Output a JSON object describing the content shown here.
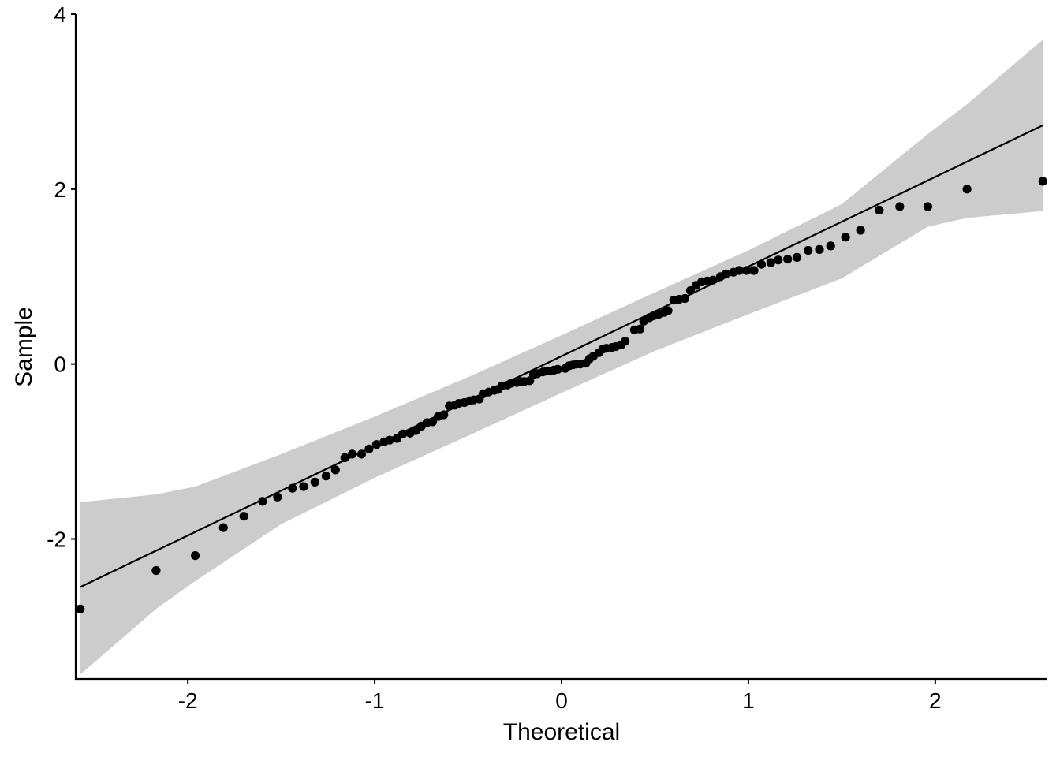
{
  "chart_data": {
    "type": "scatter",
    "subtype": "qq-plot",
    "title": "",
    "xlabel": "Theoretical",
    "ylabel": "Sample",
    "xlim": [
      -2.6,
      2.6
    ],
    "ylim": [
      -3.6,
      4.0
    ],
    "x_ticks": [
      -2,
      -1,
      0,
      1,
      2
    ],
    "x_tick_labels": [
      "-2",
      "-1",
      "0",
      "1",
      "2"
    ],
    "y_ticks": [
      -2,
      0,
      2,
      4
    ],
    "y_tick_labels": [
      "-2",
      "0",
      "2",
      "4"
    ],
    "grid": false,
    "colors": {
      "points": "#000000",
      "line": "#000000",
      "band": "#cccccc",
      "axis": "#000000"
    },
    "reference_line": {
      "x": [
        -2.576,
        2.576
      ],
      "y": [
        -2.55,
        2.73
      ]
    },
    "confidence_band": {
      "x": [
        -2.576,
        -2.17,
        -1.96,
        -1.5,
        -1.0,
        -0.5,
        0.0,
        0.5,
        1.0,
        1.5,
        1.96,
        2.17,
        2.576
      ],
      "lower": [
        -3.55,
        -2.8,
        -2.48,
        -1.83,
        -1.3,
        -0.82,
        -0.33,
        0.15,
        0.57,
        0.98,
        1.57,
        1.67,
        1.75
      ],
      "upper": [
        -1.58,
        -1.49,
        -1.4,
        -1.03,
        -0.6,
        -0.15,
        0.33,
        0.82,
        1.3,
        1.83,
        2.63,
        2.97,
        3.71
      ]
    },
    "points": [
      [
        -2.576,
        -2.8
      ],
      [
        -2.17,
        -2.36
      ],
      [
        -1.96,
        -2.19
      ],
      [
        -1.81,
        -1.87
      ],
      [
        -1.7,
        -1.74
      ],
      [
        -1.6,
        -1.57
      ],
      [
        -1.52,
        -1.52
      ],
      [
        -1.44,
        -1.42
      ],
      [
        -1.38,
        -1.4
      ],
      [
        -1.32,
        -1.35
      ],
      [
        -1.26,
        -1.28
      ],
      [
        -1.21,
        -1.21
      ],
      [
        -1.16,
        -1.07
      ],
      [
        -1.12,
        -1.03
      ],
      [
        -1.07,
        -1.03
      ],
      [
        -1.03,
        -0.97
      ],
      [
        -0.99,
        -0.92
      ],
      [
        -0.95,
        -0.89
      ],
      [
        -0.92,
        -0.87
      ],
      [
        -0.88,
        -0.85
      ],
      [
        -0.85,
        -0.8
      ],
      [
        -0.81,
        -0.79
      ],
      [
        -0.78,
        -0.76
      ],
      [
        -0.75,
        -0.71
      ],
      [
        -0.72,
        -0.67
      ],
      [
        -0.69,
        -0.66
      ],
      [
        -0.66,
        -0.6
      ],
      [
        -0.63,
        -0.58
      ],
      [
        -0.6,
        -0.48
      ],
      [
        -0.57,
        -0.47
      ],
      [
        -0.55,
        -0.45
      ],
      [
        -0.52,
        -0.44
      ],
      [
        -0.49,
        -0.42
      ],
      [
        -0.47,
        -0.41
      ],
      [
        -0.44,
        -0.4
      ],
      [
        -0.42,
        -0.34
      ],
      [
        -0.39,
        -0.32
      ],
      [
        -0.36,
        -0.3
      ],
      [
        -0.34,
        -0.29
      ],
      [
        -0.32,
        -0.25
      ],
      [
        -0.29,
        -0.24
      ],
      [
        -0.27,
        -0.22
      ],
      [
        -0.24,
        -0.21
      ],
      [
        -0.22,
        -0.2
      ],
      [
        -0.2,
        -0.2
      ],
      [
        -0.17,
        -0.19
      ],
      [
        -0.15,
        -0.12
      ],
      [
        -0.13,
        -0.11
      ],
      [
        -0.1,
        -0.09
      ],
      [
        -0.08,
        -0.08
      ],
      [
        -0.06,
        -0.08
      ],
      [
        -0.04,
        -0.07
      ],
      [
        -0.02,
        -0.06
      ],
      [
        0.02,
        -0.05
      ],
      [
        0.04,
        -0.02
      ],
      [
        0.06,
        -0.01
      ],
      [
        0.08,
        0.0
      ],
      [
        0.1,
        0.0
      ],
      [
        0.13,
        0.01
      ],
      [
        0.15,
        0.06
      ],
      [
        0.17,
        0.09
      ],
      [
        0.2,
        0.13
      ],
      [
        0.22,
        0.17
      ],
      [
        0.24,
        0.18
      ],
      [
        0.27,
        0.19
      ],
      [
        0.29,
        0.2
      ],
      [
        0.32,
        0.22
      ],
      [
        0.34,
        0.26
      ],
      [
        0.39,
        0.39
      ],
      [
        0.42,
        0.4
      ],
      [
        0.44,
        0.49
      ],
      [
        0.47,
        0.53
      ],
      [
        0.49,
        0.55
      ],
      [
        0.52,
        0.57
      ],
      [
        0.55,
        0.59
      ],
      [
        0.57,
        0.61
      ],
      [
        0.6,
        0.73
      ],
      [
        0.63,
        0.74
      ],
      [
        0.66,
        0.75
      ],
      [
        0.69,
        0.84
      ],
      [
        0.72,
        0.9
      ],
      [
        0.75,
        0.94
      ],
      [
        0.78,
        0.95
      ],
      [
        0.81,
        0.96
      ],
      [
        0.85,
        1.0
      ],
      [
        0.88,
        1.03
      ],
      [
        0.92,
        1.05
      ],
      [
        0.95,
        1.07
      ],
      [
        0.99,
        1.07
      ],
      [
        1.03,
        1.07
      ],
      [
        1.07,
        1.14
      ],
      [
        1.12,
        1.16
      ],
      [
        1.16,
        1.19
      ],
      [
        1.21,
        1.2
      ],
      [
        1.26,
        1.22
      ],
      [
        1.32,
        1.3
      ],
      [
        1.38,
        1.31
      ],
      [
        1.44,
        1.35
      ],
      [
        1.52,
        1.45
      ],
      [
        1.6,
        1.53
      ],
      [
        1.7,
        1.76
      ],
      [
        1.81,
        1.8
      ],
      [
        1.96,
        1.8
      ],
      [
        2.17,
        2.0
      ],
      [
        2.576,
        2.09
      ]
    ]
  }
}
